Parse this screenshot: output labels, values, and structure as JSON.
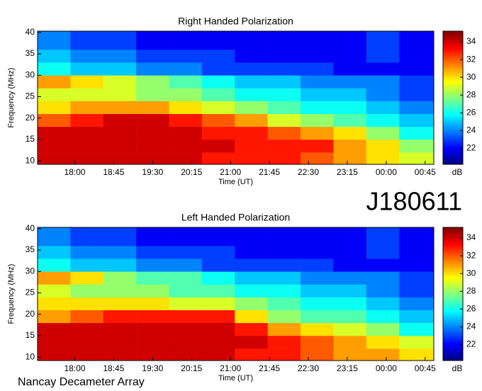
{
  "label": "J180611",
  "footer": "Nancay Decameter Array",
  "chart_data": [
    {
      "type": "heatmap",
      "title": "Right Handed Polarization",
      "x_label": "Time (UT)",
      "y_label": "Frequency (MHz)",
      "colormap": "jet",
      "xlim": [
        1037,
        1495
      ],
      "ylim": [
        9.2,
        40.3
      ],
      "xticks": [
        {
          "value": 1080,
          "label": "18:00"
        },
        {
          "value": 1125,
          "label": "18:45"
        },
        {
          "value": 1170,
          "label": "19:30"
        },
        {
          "value": 1215,
          "label": "20:15"
        },
        {
          "value": 1260,
          "label": "21:00"
        },
        {
          "value": 1305,
          "label": "21:45"
        },
        {
          "value": 1350,
          "label": "22:30"
        },
        {
          "value": 1395,
          "label": "23:15"
        },
        {
          "value": 1440,
          "label": "00:00"
        },
        {
          "value": 1485,
          "label": "00:45"
        }
      ],
      "yticks": [
        10,
        15,
        20,
        25,
        30,
        35,
        40
      ],
      "xbins": [
        1037,
        1075,
        1113,
        1151,
        1189,
        1227,
        1265,
        1303,
        1341,
        1379,
        1417,
        1455,
        1495
      ],
      "ybins": [
        9.2,
        12,
        15,
        18,
        21,
        24,
        27,
        30,
        33,
        36,
        40.3
      ],
      "values": [
        [
          34,
          34,
          34,
          34,
          34,
          33,
          33,
          33,
          32,
          31,
          30,
          29
        ],
        [
          34,
          34,
          34,
          34,
          34,
          34,
          33,
          33,
          33,
          31,
          30,
          28
        ],
        [
          34,
          34,
          34,
          34,
          34,
          33,
          33,
          32,
          31,
          30,
          28,
          26
        ],
        [
          32,
          33,
          34,
          34,
          33,
          32,
          31,
          29,
          28,
          27,
          26,
          25
        ],
        [
          30,
          31,
          31,
          31,
          30,
          29,
          28,
          27,
          26,
          26,
          25,
          24
        ],
        [
          29,
          29,
          29,
          28,
          28,
          27,
          26,
          26,
          25,
          25,
          24,
          23
        ],
        [
          31,
          30,
          29,
          28,
          27,
          26,
          25,
          25,
          24,
          24,
          24,
          23
        ],
        [
          26,
          25,
          25,
          24,
          24,
          23,
          23,
          23,
          23,
          22,
          22,
          22
        ],
        [
          25,
          24,
          24,
          23,
          23,
          23,
          22,
          22,
          22,
          22,
          23,
          22
        ],
        [
          24,
          23,
          23,
          22,
          22,
          22,
          22,
          22,
          22,
          22,
          23,
          22
        ]
      ],
      "clim": [
        20.2,
        35.2
      ],
      "cticks": [
        22,
        24,
        26,
        28,
        30,
        32,
        34
      ],
      "clabel": "dB"
    },
    {
      "type": "heatmap",
      "title": "Left Handed Polarization",
      "x_label": "Time (UT)",
      "y_label": "Frequency (MHz)",
      "colormap": "jet",
      "xlim": [
        1037,
        1495
      ],
      "ylim": [
        9.2,
        40.3
      ],
      "xticks": [
        {
          "value": 1080,
          "label": "18:00"
        },
        {
          "value": 1125,
          "label": "18:45"
        },
        {
          "value": 1170,
          "label": "19:30"
        },
        {
          "value": 1215,
          "label": "20:15"
        },
        {
          "value": 1260,
          "label": "21:00"
        },
        {
          "value": 1305,
          "label": "21:45"
        },
        {
          "value": 1350,
          "label": "22:30"
        },
        {
          "value": 1395,
          "label": "23:15"
        },
        {
          "value": 1440,
          "label": "00:00"
        },
        {
          "value": 1485,
          "label": "00:45"
        }
      ],
      "yticks": [
        10,
        15,
        20,
        25,
        30,
        35,
        40
      ],
      "xbins": [
        1037,
        1075,
        1113,
        1151,
        1189,
        1227,
        1265,
        1303,
        1341,
        1379,
        1417,
        1455,
        1495
      ],
      "ybins": [
        9.2,
        12,
        15,
        18,
        21,
        24,
        27,
        30,
        33,
        36,
        40.3
      ],
      "values": [
        [
          34,
          34,
          34,
          34,
          34,
          34,
          33,
          33,
          32,
          31,
          31,
          30
        ],
        [
          34,
          34,
          34,
          34,
          34,
          34,
          34,
          33,
          32,
          31,
          30,
          29
        ],
        [
          34,
          34,
          34,
          34,
          34,
          34,
          33,
          31,
          30,
          29,
          28,
          26
        ],
        [
          31,
          32,
          33,
          33,
          33,
          33,
          30,
          28,
          27,
          27,
          26,
          25
        ],
        [
          30,
          30,
          30,
          30,
          29,
          29,
          28,
          27,
          26,
          26,
          25,
          24
        ],
        [
          29,
          28,
          28,
          28,
          27,
          27,
          26,
          26,
          25,
          25,
          24,
          23
        ],
        [
          31,
          30,
          28,
          27,
          27,
          26,
          25,
          25,
          24,
          24,
          24,
          23
        ],
        [
          26,
          25,
          25,
          24,
          24,
          23,
          23,
          23,
          23,
          22,
          22,
          22
        ],
        [
          25,
          24,
          24,
          23,
          23,
          23,
          22,
          22,
          22,
          22,
          23,
          22
        ],
        [
          24,
          23,
          23,
          22,
          22,
          22,
          22,
          22,
          22,
          22,
          23,
          22
        ]
      ],
      "clim": [
        20.2,
        35.2
      ],
      "cticks": [
        22,
        24,
        26,
        28,
        30,
        32,
        34
      ],
      "clabel": "dB"
    }
  ]
}
